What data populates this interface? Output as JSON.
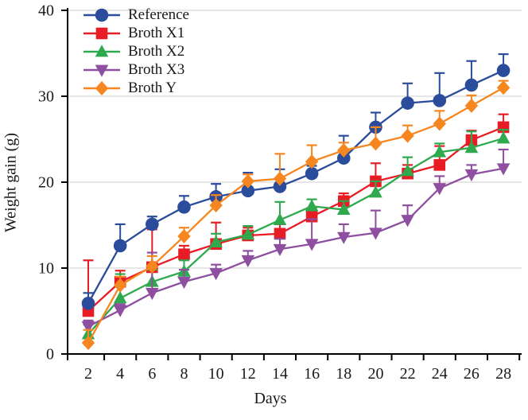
{
  "figure": {
    "background": "#ffffff",
    "axis_color": "#000000",
    "gridline_color": "#d8d8d8",
    "text_color": "#1a1a1a",
    "axes": {
      "y": {
        "label": "Weight gain (g)",
        "tick_values": [
          0,
          10,
          20,
          30,
          40
        ],
        "gridlines": [
          10,
          20,
          30,
          40
        ],
        "range": [
          0,
          40
        ]
      },
      "x": {
        "label": "Days",
        "tick_values": [
          2,
          4,
          6,
          8,
          10,
          12,
          14,
          16,
          18,
          20,
          22,
          24,
          26,
          28
        ],
        "minor_ticks": [
          3,
          5,
          7,
          9,
          11,
          13,
          15,
          17,
          19,
          21,
          23,
          25,
          27,
          29
        ],
        "range": [
          0.7,
          29.3
        ]
      }
    },
    "legend": {
      "position": "top-left",
      "entries": [
        "Reference",
        "Broth X1",
        "Broth X2",
        "Broth X3",
        "Broth Y"
      ]
    }
  },
  "chart_data": {
    "type": "line",
    "title": "",
    "xlabel": "Days",
    "ylabel": "Weight gain (g)",
    "xlim": [
      0.7,
      29.3
    ],
    "ylim": [
      0,
      40
    ],
    "grid": "horizontal",
    "legend_position": "top-left",
    "error_bars": "upward, with caps",
    "x": [
      2,
      4,
      6,
      8,
      10,
      12,
      14,
      16,
      18,
      20,
      22,
      24,
      26,
      28
    ],
    "series": [
      {
        "name": "Reference",
        "marker": "circle",
        "color": "#2b4c9b",
        "values": [
          5.9,
          12.6,
          15.1,
          17.1,
          18.3,
          19.0,
          19.5,
          21.0,
          22.8,
          26.4,
          29.2,
          29.5,
          31.3,
          33.0
        ],
        "errors_up": [
          1.2,
          2.5,
          0.9,
          1.3,
          1.5,
          2.1,
          2.0,
          0.9,
          2.6,
          1.7,
          2.3,
          3.2,
          2.8,
          1.9
        ]
      },
      {
        "name": "Broth X1",
        "marker": "square",
        "color": "#e81c24",
        "values": [
          5.0,
          8.4,
          10.1,
          11.6,
          12.8,
          13.8,
          14.0,
          16.0,
          17.8,
          20.1,
          21.0,
          22.0,
          24.9,
          26.4
        ],
        "errors_up": [
          5.9,
          1.3,
          4.4,
          1.0,
          2.5,
          0.9,
          1.1,
          1.0,
          0.9,
          2.1,
          1.0,
          2.2,
          1.1,
          1.5
        ]
      },
      {
        "name": "Broth X2",
        "marker": "triangle-up",
        "color": "#2fa94d",
        "values": [
          2.3,
          6.5,
          8.4,
          9.6,
          13.0,
          13.9,
          15.6,
          17.2,
          16.8,
          18.8,
          21.3,
          23.5,
          24.0,
          25.1
        ],
        "errors_up": [
          1.1,
          2.8,
          1.4,
          1.3,
          1.0,
          1.0,
          2.1,
          0.8,
          1.0,
          1.3,
          1.6,
          1.0,
          1.9,
          1.0
        ]
      },
      {
        "name": "Broth X3",
        "marker": "triangle-down",
        "color": "#8e4fa0",
        "values": [
          3.2,
          5.1,
          7.1,
          8.4,
          9.4,
          10.9,
          12.2,
          12.8,
          13.6,
          14.1,
          15.6,
          19.3,
          20.9,
          21.6
        ],
        "errors_up": [
          0.7,
          0.7,
          4.7,
          1.4,
          1.0,
          1.1,
          1.2,
          2.9,
          1.5,
          2.6,
          1.7,
          1.4,
          1.1,
          2.2
        ]
      },
      {
        "name": "Broth Y",
        "marker": "diamond",
        "color": "#f6861f",
        "values": [
          1.3,
          8.0,
          10.2,
          13.7,
          17.3,
          20.1,
          20.4,
          22.4,
          23.7,
          24.5,
          25.4,
          26.8,
          28.9,
          31.0
        ],
        "errors_up": [
          1.5,
          1.0,
          1.2,
          1.0,
          1.2,
          0.8,
          2.9,
          1.9,
          0.9,
          1.9,
          1.2,
          1.5,
          1.2,
          0.8
        ]
      }
    ],
    "draw_order": [
      1,
      2,
      3,
      0,
      4
    ]
  }
}
